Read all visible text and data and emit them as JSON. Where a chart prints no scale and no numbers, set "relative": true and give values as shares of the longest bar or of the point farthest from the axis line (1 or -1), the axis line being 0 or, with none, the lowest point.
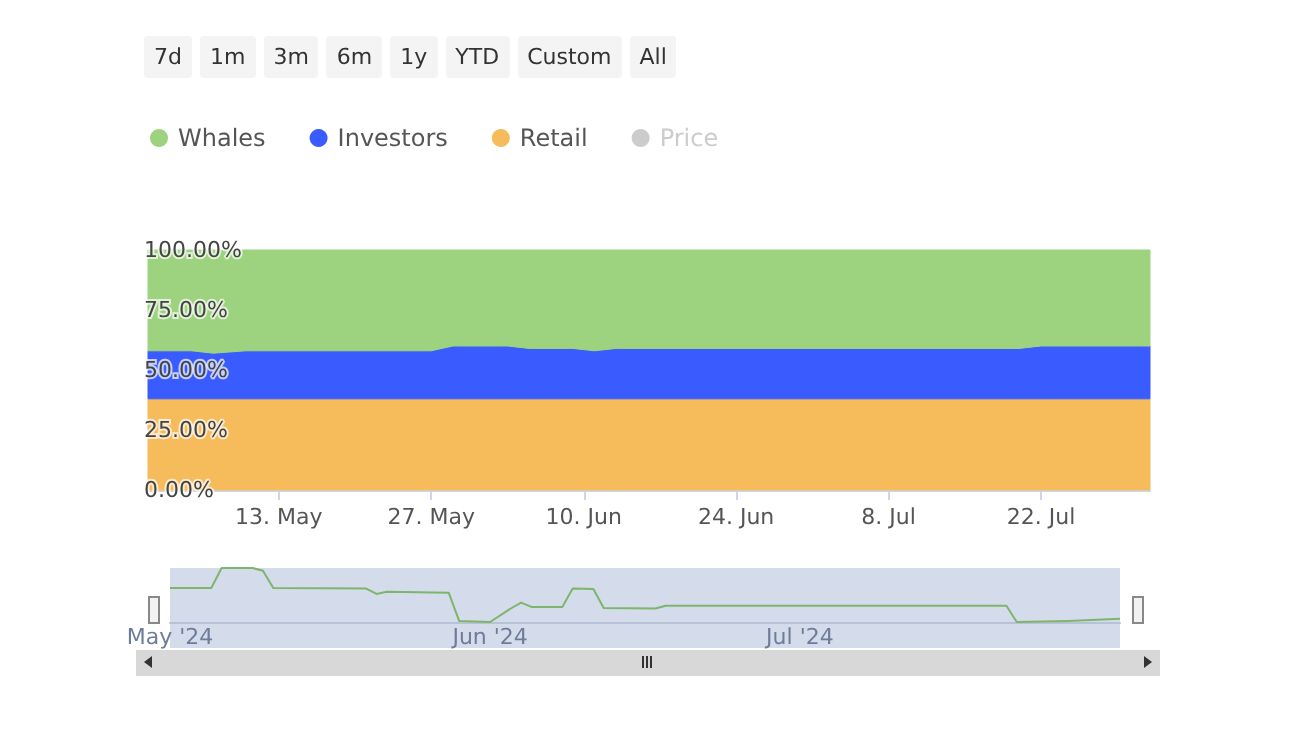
{
  "chart_data": [
    {
      "type": "area",
      "stacked": true,
      "legend": "top left",
      "annotations": [
        "7d",
        "1m",
        "3m",
        "6m",
        "1y",
        "YTD",
        "Custom",
        "All"
      ],
      "x": [
        "2024-05-01",
        "2024-05-05",
        "2024-05-07",
        "2024-05-10",
        "2024-05-27",
        "2024-05-29",
        "2024-06-03",
        "2024-06-05",
        "2024-06-09",
        "2024-06-11",
        "2024-06-13",
        "2024-07-20",
        "2024-07-22",
        "2024-08-01"
      ],
      "series": [
        {
          "name": "Retail",
          "color": "#f6bb5a",
          "values": [
            38,
            38,
            38,
            38,
            38,
            38,
            38,
            38,
            38,
            38,
            38,
            38,
            38,
            38
          ]
        },
        {
          "name": "Investors",
          "color": "#3a5cff",
          "values": [
            20,
            20,
            19,
            20,
            20,
            22,
            22,
            21,
            21,
            20,
            21,
            21,
            22,
            22
          ]
        },
        {
          "name": "Whales",
          "color": "#9dd37e",
          "values": [
            42,
            42,
            43,
            42,
            42,
            40,
            40,
            41,
            41,
            42,
            41,
            41,
            40,
            40
          ]
        },
        {
          "name": "Price",
          "type": "line",
          "color": "#cccccc",
          "values": [
            null,
            null,
            null,
            null,
            null,
            null,
            null,
            null,
            null,
            null,
            null,
            null,
            null,
            null
          ]
        }
      ],
      "xlim": [
        "2024-05-01",
        "2024-08-01"
      ],
      "xticks": [
        {
          "value": "2024-05-13",
          "label": "13. May"
        },
        {
          "value": "2024-05-27",
          "label": "27. May"
        },
        {
          "value": "2024-06-10",
          "label": "10. Jun"
        },
        {
          "value": "2024-06-24",
          "label": "24. Jun"
        },
        {
          "value": "2024-07-08",
          "label": "8. Jul"
        },
        {
          "value": "2024-07-22",
          "label": "22. Jul"
        }
      ],
      "ylim": [
        0,
        100
      ],
      "yticks": [
        {
          "value": 0,
          "label": "0.00%"
        },
        {
          "value": 25,
          "label": "25.00%"
        },
        {
          "value": 50,
          "label": "50.00%"
        },
        {
          "value": 75,
          "label": "75.00%"
        },
        {
          "value": 100,
          "label": "100.00%"
        }
      ]
    },
    {
      "type": "line",
      "relative": true,
      "color": "#7cb56b",
      "x": [
        "2024-05-01",
        "2024-05-05",
        "2024-05-06",
        "2024-05-09",
        "2024-05-10",
        "2024-05-11",
        "2024-05-20",
        "2024-05-21",
        "2024-05-22",
        "2024-05-28",
        "2024-05-29",
        "2024-06-01",
        "2024-06-03",
        "2024-06-04",
        "2024-06-05",
        "2024-06-08",
        "2024-06-09",
        "2024-06-11",
        "2024-06-12",
        "2024-06-17",
        "2024-06-18",
        "2024-07-21",
        "2024-07-22",
        "2024-07-27",
        "2024-08-01"
      ],
      "values": [
        0.63,
        0.63,
        1.0,
        1.0,
        0.95,
        0.63,
        0.62,
        0.52,
        0.56,
        0.54,
        0.02,
        0,
        0.25,
        0.36,
        0.28,
        0.28,
        0.62,
        0.61,
        0.26,
        0.25,
        0.3,
        0.3,
        0,
        0.02,
        0.06
      ],
      "xlim": [
        "2024-05-01",
        "2024-08-01"
      ],
      "xticks": [
        {
          "value": "2024-05-01",
          "label": "May '24"
        },
        {
          "value": "2024-06-01",
          "label": "Jun '24"
        },
        {
          "value": "2024-07-01",
          "label": "Jul '24"
        }
      ]
    }
  ]
}
